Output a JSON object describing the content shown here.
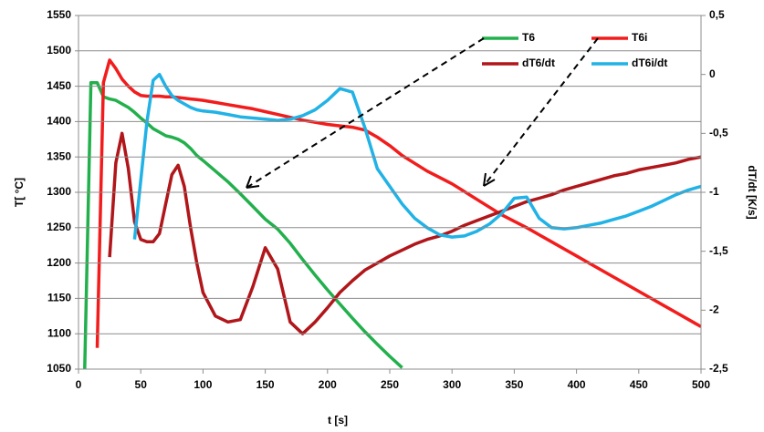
{
  "chart_data": {
    "type": "line",
    "xlabel": "t [s]",
    "ylabel": "T[ °C]",
    "y2label": "dT/dt [K/s]",
    "x": [
      5,
      10,
      15,
      20,
      25,
      30,
      35,
      40,
      45,
      50,
      55,
      60,
      65,
      70,
      75,
      80,
      85,
      90,
      95,
      100,
      110,
      120,
      130,
      140,
      150,
      160,
      170,
      180,
      190,
      200,
      210,
      220,
      230,
      240,
      250,
      260,
      270,
      280,
      290,
      300,
      310,
      320,
      330,
      340,
      350,
      360,
      370,
      380,
      390,
      400,
      410,
      420,
      430,
      440,
      450,
      460,
      470,
      480,
      490,
      500
    ],
    "series": [
      {
        "name": "T6",
        "color": "#22b04c",
        "values": [
          1050,
          1455,
          1455,
          1435,
          1432,
          1430,
          1425,
          1420,
          1413,
          1405,
          1398,
          1390,
          1385,
          1380,
          1378,
          1375,
          1370,
          1362,
          1352,
          1345,
          1330,
          1315,
          1298,
          1280,
          1262,
          1248,
          1228,
          1205,
          1183,
          1162,
          1142,
          1122,
          1103,
          1085,
          1068,
          1052,
          null,
          null,
          null,
          null,
          null,
          null,
          null,
          null,
          null,
          null,
          null,
          null,
          null,
          null,
          null,
          null,
          null,
          null,
          null,
          null,
          null,
          null,
          null,
          null
        ]
      },
      {
        "name": "T6i",
        "color": "#f21c1c",
        "values": [
          null,
          null,
          1080,
          1455,
          1487,
          1475,
          1460,
          1450,
          1442,
          1437,
          1436,
          1436,
          1436,
          1435,
          1435,
          1434,
          1433,
          1432,
          1431,
          1430,
          1427,
          1424,
          1421,
          1418,
          1414,
          1410,
          1406,
          1402,
          1399,
          1396,
          1394,
          1392,
          1388,
          1378,
          1366,
          1352,
          1341,
          1330,
          1321,
          1312,
          1301,
          1290,
          1279,
          1268,
          1259,
          1250,
          1240,
          1230,
          1220,
          1210,
          1200,
          1190,
          1180,
          1170,
          1160,
          1150,
          1140,
          1130,
          1120,
          1110
        ]
      },
      {
        "name": "dT6/dt",
        "color": "#b0161a",
        "axis": "y2",
        "values": [
          null,
          null,
          null,
          null,
          -1.55,
          -0.75,
          -0.5,
          -0.8,
          -1.25,
          -1.4,
          -1.42,
          -1.42,
          -1.35,
          -1.1,
          -0.85,
          -0.77,
          -0.95,
          -1.3,
          -1.6,
          -1.85,
          -2.05,
          -2.1,
          -2.08,
          -1.8,
          -1.47,
          -1.65,
          -2.1,
          -2.2,
          -2.1,
          -1.98,
          -1.85,
          -1.75,
          -1.66,
          -1.6,
          -1.54,
          -1.49,
          -1.44,
          -1.4,
          -1.37,
          -1.33,
          -1.28,
          -1.24,
          -1.2,
          -1.16,
          -1.12,
          -1.08,
          -1.05,
          -1.02,
          -0.98,
          -0.95,
          -0.92,
          -0.89,
          -0.86,
          -0.84,
          -0.81,
          -0.79,
          -0.77,
          -0.75,
          -0.72,
          -0.7
        ]
      },
      {
        "name": "dT6i/dt",
        "color": "#21b2e6",
        "axis": "y2",
        "values": [
          null,
          null,
          null,
          null,
          null,
          null,
          null,
          null,
          -1.4,
          -0.9,
          -0.4,
          -0.05,
          0,
          -0.1,
          -0.18,
          -0.22,
          -0.25,
          -0.28,
          -0.3,
          -0.31,
          -0.32,
          -0.34,
          -0.36,
          -0.37,
          -0.38,
          -0.39,
          -0.38,
          -0.35,
          -0.3,
          -0.22,
          -0.12,
          -0.15,
          -0.45,
          -0.8,
          -0.95,
          -1.1,
          -1.22,
          -1.3,
          -1.36,
          -1.38,
          -1.37,
          -1.33,
          -1.27,
          -1.18,
          -1.05,
          -1.04,
          -1.22,
          -1.3,
          -1.31,
          -1.3,
          -1.28,
          -1.26,
          -1.23,
          -1.2,
          -1.16,
          -1.12,
          -1.07,
          -1.02,
          -0.98,
          -0.95
        ]
      }
    ],
    "xlim": [
      0,
      500
    ],
    "xticks": [
      0,
      50,
      100,
      150,
      200,
      250,
      300,
      350,
      400,
      450,
      500
    ],
    "ylim": [
      1050,
      1550
    ],
    "yticks": [
      1050,
      1100,
      1150,
      1200,
      1250,
      1300,
      1350,
      1400,
      1450,
      1500,
      1550
    ],
    "y2lim": [
      -2.5,
      0.5
    ],
    "y2ticks": [
      {
        "value": -2.5,
        "label": "-2,5"
      },
      -2,
      {
        "value": -1.5,
        "label": "-1,5"
      },
      -1,
      {
        "value": -0.5,
        "label": "-0,5"
      },
      0,
      {
        "value": 0.5,
        "label": "0,5"
      }
    ],
    "grid": true
  }
}
